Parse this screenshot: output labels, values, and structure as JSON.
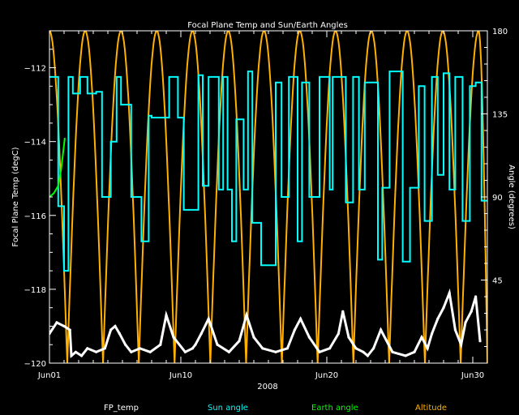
{
  "chart_data": {
    "type": "line",
    "title": "Focal Plane Temp and Sun/Earth Angles",
    "xlabel": "2008",
    "ylabel_left": "Focal Plane Temp (degC)",
    "ylabel_right": "Angle (degrees)",
    "xlim": [
      0,
      30
    ],
    "ylim_left": [
      -120,
      -111
    ],
    "ylim_right": [
      0,
      180
    ],
    "x_ticks": [
      {
        "value": 0,
        "label": "Jun01"
      },
      {
        "value": 9,
        "label": "Jun10"
      },
      {
        "value": 19,
        "label": "Jun20"
      },
      {
        "value": 29,
        "label": "Jun30"
      }
    ],
    "y_left_ticks": [
      {
        "value": -120,
        "label": "−120"
      },
      {
        "value": -118,
        "label": "−118"
      },
      {
        "value": -116,
        "label": "−116"
      },
      {
        "value": -114,
        "label": "−114"
      },
      {
        "value": -112,
        "label": "−112"
      }
    ],
    "y_right_ticks": [
      {
        "value": 45,
        "label": "45"
      },
      {
        "value": 90,
        "label": "90"
      },
      {
        "value": 135,
        "label": "135"
      },
      {
        "value": 180,
        "label": "180"
      }
    ],
    "grid": false,
    "legend": "bottom",
    "series": [
      {
        "name": "FP_temp",
        "color": "#ffffff",
        "axis": "left",
        "x": [
          0.0,
          0.5,
          1.0,
          1.4,
          1.5,
          1.8,
          2.2,
          2.6,
          3.2,
          3.8,
          4.2,
          4.5,
          4.8,
          5.2,
          5.6,
          6.2,
          6.9,
          7.6,
          8.0,
          8.5,
          9.3,
          9.8,
          10.0,
          10.4,
          10.9,
          11.5,
          12.3,
          13.0,
          13.5,
          14.0,
          14.6,
          15.5,
          16.3,
          16.8,
          17.2,
          17.8,
          18.5,
          19.2,
          19.8,
          20.1,
          20.5,
          21.0,
          21.5,
          21.8,
          22.2,
          22.7,
          23.5,
          24.4,
          25.0,
          25.5,
          25.9,
          26.2,
          26.6,
          27.0,
          27.4,
          27.8,
          28.2,
          28.5,
          28.9,
          29.2,
          29.5
        ],
        "y": [
          -119.2,
          -118.9,
          -119.0,
          -119.1,
          -119.8,
          -119.7,
          -119.8,
          -119.6,
          -119.7,
          -119.6,
          -119.1,
          -119.0,
          -119.2,
          -119.5,
          -119.7,
          -119.6,
          -119.7,
          -119.5,
          -118.7,
          -119.3,
          -119.7,
          -119.6,
          -119.5,
          -119.2,
          -118.8,
          -119.5,
          -119.7,
          -119.4,
          -118.7,
          -119.3,
          -119.6,
          -119.7,
          -119.6,
          -119.1,
          -118.8,
          -119.3,
          -119.7,
          -119.6,
          -119.2,
          -118.6,
          -119.3,
          -119.6,
          -119.7,
          -119.8,
          -119.6,
          -119.1,
          -119.7,
          -119.8,
          -119.7,
          -119.3,
          -119.6,
          -119.2,
          -118.8,
          -118.5,
          -118.1,
          -119.1,
          -119.5,
          -118.9,
          -118.6,
          -118.2,
          -119.4
        ]
      },
      {
        "name": "Sun angle",
        "color": "#00ffff",
        "axis": "right",
        "x": [
          0.0,
          0.6,
          0.6,
          1.0,
          1.0,
          1.3,
          1.3,
          1.6,
          1.6,
          2.1,
          2.1,
          2.6,
          2.6,
          3.2,
          3.2,
          3.6,
          3.6,
          4.2,
          4.2,
          4.6,
          4.6,
          4.9,
          4.9,
          5.6,
          5.6,
          6.3,
          6.3,
          6.8,
          6.8,
          7.0,
          7.0,
          8.2,
          8.2,
          8.8,
          8.8,
          9.2,
          9.2,
          10.2,
          10.2,
          10.5,
          10.5,
          10.9,
          10.9,
          11.6,
          11.6,
          11.9,
          11.9,
          12.2,
          12.2,
          12.5,
          12.5,
          12.8,
          12.8,
          13.3,
          13.3,
          13.6,
          13.6,
          13.9,
          13.9,
          14.5,
          14.5,
          15.5,
          15.5,
          15.9,
          15.9,
          16.4,
          16.4,
          17.0,
          17.0,
          17.3,
          17.3,
          17.8,
          17.8,
          18.5,
          18.5,
          19.2,
          19.2,
          19.4,
          19.4,
          20.3,
          20.3,
          20.8,
          20.8,
          21.2,
          21.2,
          21.6,
          21.6,
          22.5,
          22.5,
          22.8,
          22.8,
          23.3,
          23.3,
          24.2,
          24.2,
          24.7,
          24.7,
          25.3,
          25.3,
          25.7,
          25.7,
          26.2,
          26.2,
          26.6,
          26.6,
          27.0,
          27.0,
          27.4,
          27.4,
          27.8,
          27.8,
          28.3,
          28.3,
          28.8,
          28.8,
          29.2,
          29.2,
          29.6,
          29.6,
          30.0
        ],
        "y": [
          155,
          155,
          85,
          85,
          50,
          50,
          155,
          155,
          146,
          146,
          155,
          155,
          146,
          146,
          147,
          147,
          90,
          90,
          120,
          120,
          155,
          155,
          140,
          140,
          90,
          90,
          66,
          66,
          134,
          134,
          133,
          133,
          155,
          155,
          133,
          133,
          83,
          83,
          156,
          156,
          96,
          96,
          155,
          155,
          94,
          94,
          155,
          155,
          94,
          94,
          66,
          66,
          132,
          132,
          94,
          94,
          158,
          158,
          76,
          76,
          53,
          53,
          152,
          152,
          90,
          90,
          155,
          155,
          66,
          66,
          152,
          152,
          90,
          90,
          155,
          155,
          94,
          94,
          155,
          155,
          87,
          87,
          155,
          155,
          94,
          94,
          152,
          152,
          56,
          56,
          95,
          95,
          158,
          158,
          55,
          55,
          95,
          95,
          150,
          150,
          77,
          77,
          155,
          155,
          102,
          102,
          157,
          157,
          94,
          94,
          155,
          155,
          77,
          77,
          150,
          150,
          152,
          152,
          88,
          88
        ]
      },
      {
        "name": "Earth angle",
        "color": "#00ff00",
        "axis": "right",
        "x": [
          0.0,
          0.3,
          0.6,
          0.8,
          0.95,
          1.05
        ],
        "y": [
          90,
          92,
          96,
          105,
          115,
          122
        ]
      },
      {
        "name": "Altitude",
        "color": "#ffb000",
        "axis": "right",
        "peaks": [
          0.0,
          2.45,
          4.9,
          7.35,
          9.8,
          12.25,
          14.7,
          17.15,
          19.6,
          22.05,
          24.5,
          26.95,
          29.4
        ],
        "troughs": [
          1.22,
          3.67,
          6.12,
          8.57,
          11.02,
          13.47,
          15.92,
          18.37,
          20.82,
          23.27,
          25.72,
          28.17,
          30.0
        ]
      }
    ]
  }
}
